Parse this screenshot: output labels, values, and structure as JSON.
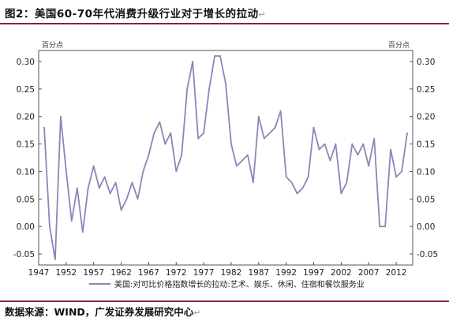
{
  "figure": {
    "title": "图2：美国60-70年代消费升级行业对于增长的拉动",
    "title_mark": "↵",
    "source": "数据来源：WIND，广发证券发展研究中心",
    "source_mark": "↵"
  },
  "chart_data": {
    "type": "line",
    "title": "图2：美国60-70年代消费升级行业对于增长的拉动",
    "ylabel_left": "百分点",
    "ylabel_right": "百分点",
    "ylim": [
      -0.07,
      0.32
    ],
    "y_ticks": [
      "-0.05",
      "0.00",
      "0.05",
      "0.10",
      "0.15",
      "0.20",
      "0.25",
      "0.30"
    ],
    "y_tick_values": [
      -0.05,
      0.0,
      0.05,
      0.1,
      0.15,
      0.2,
      0.25,
      0.3
    ],
    "xlim": [
      1947,
      2015
    ],
    "x_ticks": [
      "1947",
      "1952",
      "1957",
      "1962",
      "1967",
      "1972",
      "1977",
      "1982",
      "1987",
      "1992",
      "1997",
      "2002",
      "2007",
      "2012"
    ],
    "x_tick_values": [
      1947,
      1952,
      1957,
      1962,
      1967,
      1972,
      1977,
      1982,
      1987,
      1992,
      1997,
      2002,
      2007,
      2012
    ],
    "grid": false,
    "legend_position": "bottom",
    "series": [
      {
        "name": "美国:对可比价格指数增长的拉动:艺术、娱乐、休闲、住宿和餐饮服务业",
        "color": "#8a86b8",
        "x": [
          1948,
          1949,
          1950,
          1951,
          1952,
          1953,
          1954,
          1955,
          1956,
          1957,
          1958,
          1959,
          1960,
          1961,
          1962,
          1963,
          1964,
          1965,
          1966,
          1967,
          1968,
          1969,
          1970,
          1971,
          1972,
          1973,
          1974,
          1975,
          1976,
          1977,
          1978,
          1979,
          1980,
          1981,
          1982,
          1983,
          1984,
          1985,
          1986,
          1987,
          1988,
          1989,
          1990,
          1991,
          1992,
          1993,
          1994,
          1995,
          1996,
          1997,
          1998,
          1999,
          2000,
          2001,
          2002,
          2003,
          2004,
          2005,
          2006,
          2007,
          2008,
          2009,
          2010,
          2011,
          2012,
          2013,
          2014
        ],
        "values": [
          0.18,
          0.0,
          -0.06,
          0.2,
          0.1,
          0.01,
          0.07,
          -0.01,
          0.07,
          0.11,
          0.07,
          0.09,
          0.06,
          0.08,
          0.03,
          0.05,
          0.08,
          0.05,
          0.1,
          0.13,
          0.17,
          0.19,
          0.15,
          0.17,
          0.1,
          0.13,
          0.25,
          0.3,
          0.16,
          0.17,
          0.25,
          0.31,
          0.31,
          0.26,
          0.15,
          0.11,
          0.12,
          0.13,
          0.08,
          0.2,
          0.16,
          0.17,
          0.18,
          0.21,
          0.09,
          0.08,
          0.06,
          0.07,
          0.09,
          0.18,
          0.14,
          0.15,
          0.12,
          0.15,
          0.06,
          0.08,
          0.15,
          0.13,
          0.15,
          0.11,
          0.16,
          0.0,
          0.0,
          0.14,
          0.09,
          0.1,
          0.17
        ]
      }
    ]
  }
}
